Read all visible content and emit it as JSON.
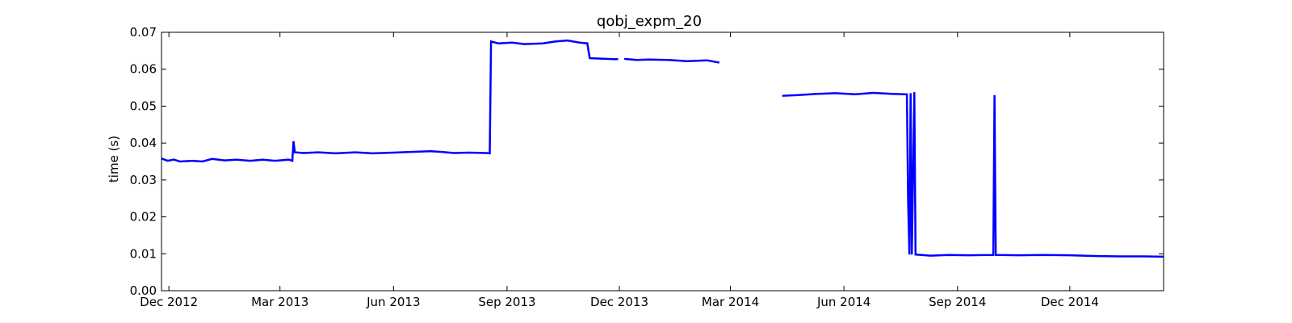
{
  "chart_data": {
    "type": "line",
    "title": "qobj_expm_20",
    "xlabel": "",
    "ylabel": "time (s)",
    "ylim": [
      0,
      0.07
    ],
    "xlim": [
      "2012-11-25",
      "2015-02-15"
    ],
    "yticks": [
      "0.00",
      "0.01",
      "0.02",
      "0.03",
      "0.04",
      "0.05",
      "0.06",
      "0.07"
    ],
    "yticks_values": [
      0,
      0.01,
      0.02,
      0.03,
      0.04,
      0.05,
      0.06,
      0.07
    ],
    "xticks": [
      {
        "date": "2012-12-01",
        "label": "Dec 2012"
      },
      {
        "date": "2013-03-01",
        "label": "Mar 2013"
      },
      {
        "date": "2013-06-01",
        "label": "Jun 2013"
      },
      {
        "date": "2013-09-01",
        "label": "Sep 2013"
      },
      {
        "date": "2013-12-01",
        "label": "Dec 2013"
      },
      {
        "date": "2014-03-01",
        "label": "Mar 2014"
      },
      {
        "date": "2014-06-01",
        "label": "Jun 2014"
      },
      {
        "date": "2014-09-01",
        "label": "Sep 2014"
      },
      {
        "date": "2014-12-01",
        "label": "Dec 2014"
      }
    ],
    "grid": false,
    "color": "#0000ff",
    "series": [
      {
        "segments": [
          [
            [
              "2012-11-25",
              0.0358
            ],
            [
              "2012-11-30",
              0.0352
            ],
            [
              "2012-12-05",
              0.0355
            ],
            [
              "2012-12-10",
              0.035
            ],
            [
              "2012-12-20",
              0.0352
            ],
            [
              "2012-12-28",
              0.035
            ],
            [
              "2013-01-05",
              0.0357
            ],
            [
              "2013-01-15",
              0.0353
            ],
            [
              "2013-01-25",
              0.0355
            ],
            [
              "2013-02-05",
              0.0352
            ],
            [
              "2013-02-15",
              0.0355
            ],
            [
              "2013-02-25",
              0.0352
            ],
            [
              "2013-03-08",
              0.0355
            ],
            [
              "2013-03-11",
              0.0352
            ],
            [
              "2013-03-12",
              0.0405
            ],
            [
              "2013-03-13",
              0.0375
            ],
            [
              "2013-03-20",
              0.0373
            ],
            [
              "2013-04-01",
              0.0375
            ],
            [
              "2013-04-15",
              0.0372
            ],
            [
              "2013-05-01",
              0.0375
            ],
            [
              "2013-05-15",
              0.0372
            ],
            [
              "2013-06-01",
              0.0374
            ],
            [
              "2013-06-15",
              0.0376
            ],
            [
              "2013-07-01",
              0.0378
            ],
            [
              "2013-07-10",
              0.0376
            ],
            [
              "2013-07-20",
              0.0373
            ],
            [
              "2013-08-01",
              0.0374
            ],
            [
              "2013-08-15",
              0.0373
            ],
            [
              "2013-08-18",
              0.0372
            ],
            [
              "2013-08-19",
              0.0675
            ],
            [
              "2013-08-25",
              0.067
            ],
            [
              "2013-09-05",
              0.0672
            ],
            [
              "2013-09-15",
              0.0668
            ],
            [
              "2013-09-30",
              0.067
            ],
            [
              "2013-10-10",
              0.0675
            ],
            [
              "2013-10-20",
              0.0678
            ],
            [
              "2013-10-30",
              0.0672
            ],
            [
              "2013-11-05",
              0.067
            ],
            [
              "2013-11-07",
              0.063
            ],
            [
              "2013-11-20",
              0.0628
            ],
            [
              "2013-11-30",
              0.0627
            ]
          ],
          [
            [
              "2013-12-05",
              0.0628
            ],
            [
              "2013-12-15",
              0.0625
            ],
            [
              "2013-12-25",
              0.0626
            ],
            [
              "2014-01-10",
              0.0625
            ],
            [
              "2014-01-25",
              0.0622
            ],
            [
              "2014-02-10",
              0.0624
            ],
            [
              "2014-02-20",
              0.0618
            ]
          ],
          [
            [
              "2014-04-12",
              0.0528
            ],
            [
              "2014-04-25",
              0.053
            ],
            [
              "2014-05-10",
              0.0533
            ],
            [
              "2014-05-25",
              0.0535
            ],
            [
              "2014-06-10",
              0.0532
            ],
            [
              "2014-06-25",
              0.0536
            ],
            [
              "2014-07-10",
              0.0533
            ],
            [
              "2014-07-22",
              0.0532
            ],
            [
              "2014-07-23",
              0.024
            ],
            [
              "2014-07-24",
              0.0098
            ],
            [
              "2014-07-25",
              0.0535
            ],
            [
              "2014-07-26",
              0.0098
            ],
            [
              "2014-07-28",
              0.0538
            ],
            [
              "2014-07-29",
              0.0098
            ],
            [
              "2014-08-10",
              0.0095
            ],
            [
              "2014-08-25",
              0.0097
            ],
            [
              "2014-09-10",
              0.0096
            ],
            [
              "2014-09-30",
              0.0097
            ],
            [
              "2014-10-01",
              0.053
            ],
            [
              "2014-10-02",
              0.0097
            ],
            [
              "2014-10-20",
              0.0096
            ],
            [
              "2014-11-10",
              0.0097
            ],
            [
              "2014-12-01",
              0.0096
            ],
            [
              "2014-12-20",
              0.0094
            ],
            [
              "2015-01-10",
              0.0093
            ],
            [
              "2015-01-30",
              0.0093
            ],
            [
              "2015-02-15",
              0.0092
            ]
          ]
        ]
      }
    ]
  }
}
